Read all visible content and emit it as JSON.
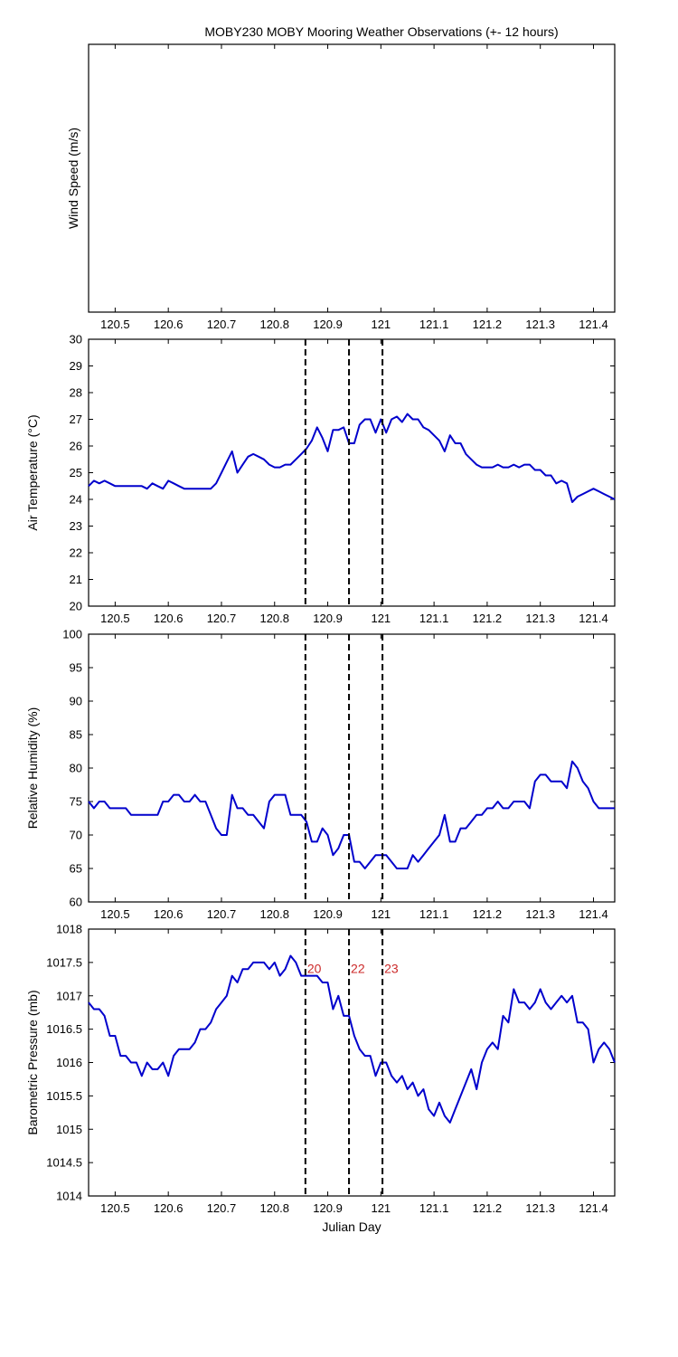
{
  "title": "MOBY230 MOBY Mooring Weather Observations (+- 12 hours)",
  "colors": {
    "line": "#0000cc",
    "marker": "#000000",
    "annotation": "#cc2a2a",
    "axes": "#000000"
  },
  "chart_data": [
    {
      "type": "line",
      "ylabel": "Wind Speed (m/s)",
      "xlabel": "",
      "xlim": [
        120.45,
        121.44
      ],
      "xticks": [
        120.5,
        120.6,
        120.7,
        120.8,
        120.9,
        121,
        121.1,
        121.2,
        121.3,
        121.4
      ],
      "xtick_labels": [
        "120.5",
        "120.6",
        "120.7",
        "120.8",
        "120.9",
        "121",
        "121.1",
        "121.2",
        "121.3",
        "121.4"
      ],
      "yticks": [],
      "ytick_labels": [],
      "series": [],
      "markers": [],
      "annotations": []
    },
    {
      "type": "line",
      "ylabel": "Air Temperature (°C)",
      "xlabel": "",
      "xlim": [
        120.45,
        121.44
      ],
      "ylim": [
        20,
        30
      ],
      "xticks": [
        120.5,
        120.6,
        120.7,
        120.8,
        120.9,
        121,
        121.1,
        121.2,
        121.3,
        121.4
      ],
      "xtick_labels": [
        "120.5",
        "120.6",
        "120.7",
        "120.8",
        "120.9",
        "121",
        "121.1",
        "121.2",
        "121.3",
        "121.4"
      ],
      "yticks": [
        20,
        21,
        22,
        23,
        24,
        25,
        26,
        27,
        28,
        29,
        30
      ],
      "ytick_labels": [
        "20",
        "21",
        "22",
        "23",
        "24",
        "25",
        "26",
        "27",
        "28",
        "29",
        "30"
      ],
      "markers": [
        120.858,
        120.94,
        121.003
      ],
      "annotations": [],
      "series": [
        {
          "x": [
            120.45,
            120.46,
            120.47,
            120.48,
            120.49,
            120.5,
            120.51,
            120.52,
            120.53,
            120.54,
            120.55,
            120.56,
            120.57,
            120.58,
            120.59,
            120.6,
            120.61,
            120.62,
            120.63,
            120.64,
            120.65,
            120.66,
            120.67,
            120.68,
            120.69,
            120.7,
            120.71,
            120.72,
            120.73,
            120.74,
            120.75,
            120.76,
            120.77,
            120.78,
            120.79,
            120.8,
            120.81,
            120.82,
            120.83,
            120.84,
            120.85,
            120.86,
            120.87,
            120.88,
            120.89,
            120.9,
            120.91,
            120.92,
            120.93,
            120.94,
            120.95,
            120.96,
            120.97,
            120.98,
            120.99,
            121.0,
            121.01,
            121.02,
            121.03,
            121.04,
            121.05,
            121.06,
            121.07,
            121.08,
            121.09,
            121.1,
            121.11,
            121.12,
            121.13,
            121.14,
            121.15,
            121.16,
            121.17,
            121.18,
            121.19,
            121.2,
            121.21,
            121.22,
            121.23,
            121.24,
            121.25,
            121.26,
            121.27,
            121.28,
            121.29,
            121.3,
            121.31,
            121.32,
            121.33,
            121.34,
            121.35,
            121.36,
            121.37,
            121.38,
            121.39,
            121.4,
            121.41,
            121.42,
            121.43,
            121.44
          ],
          "y": [
            24.5,
            24.7,
            24.6,
            24.7,
            24.6,
            24.5,
            24.5,
            24.5,
            24.5,
            24.5,
            24.5,
            24.4,
            24.6,
            24.5,
            24.4,
            24.7,
            24.6,
            24.5,
            24.4,
            24.4,
            24.4,
            24.4,
            24.4,
            24.4,
            24.6,
            25.0,
            25.4,
            25.8,
            25.0,
            25.3,
            25.6,
            25.7,
            25.6,
            25.5,
            25.3,
            25.2,
            25.2,
            25.3,
            25.3,
            25.5,
            25.7,
            25.9,
            26.2,
            26.7,
            26.3,
            25.8,
            26.6,
            26.6,
            26.7,
            26.1,
            26.1,
            26.8,
            27.0,
            27.0,
            26.5,
            27.0,
            26.5,
            27.0,
            27.1,
            26.9,
            27.2,
            27.0,
            27.0,
            26.7,
            26.6,
            26.4,
            26.2,
            25.8,
            26.4,
            26.1,
            26.1,
            25.7,
            25.5,
            25.3,
            25.2,
            25.2,
            25.2,
            25.3,
            25.2,
            25.2,
            25.3,
            25.2,
            25.3,
            25.3,
            25.1,
            25.1,
            24.9,
            24.9,
            24.6,
            24.7,
            24.6,
            23.9,
            24.1,
            24.2,
            24.3,
            24.4,
            24.3,
            24.2,
            24.1,
            24.0
          ]
        }
      ]
    },
    {
      "type": "line",
      "ylabel": "Relative Humidity (%)",
      "xlabel": "",
      "xlim": [
        120.45,
        121.44
      ],
      "ylim": [
        60,
        100
      ],
      "xticks": [
        120.5,
        120.6,
        120.7,
        120.8,
        120.9,
        121,
        121.1,
        121.2,
        121.3,
        121.4
      ],
      "xtick_labels": [
        "120.5",
        "120.6",
        "120.7",
        "120.8",
        "120.9",
        "121",
        "121.1",
        "121.2",
        "121.3",
        "121.4"
      ],
      "yticks": [
        60,
        65,
        70,
        75,
        80,
        85,
        90,
        95,
        100
      ],
      "ytick_labels": [
        "60",
        "65",
        "70",
        "75",
        "80",
        "85",
        "90",
        "95",
        "100"
      ],
      "markers": [
        120.858,
        120.94,
        121.003
      ],
      "annotations": [],
      "series": [
        {
          "x": [
            120.45,
            120.46,
            120.47,
            120.48,
            120.49,
            120.5,
            120.51,
            120.52,
            120.53,
            120.54,
            120.55,
            120.56,
            120.57,
            120.58,
            120.59,
            120.6,
            120.61,
            120.62,
            120.63,
            120.64,
            120.65,
            120.66,
            120.67,
            120.68,
            120.69,
            120.7,
            120.71,
            120.72,
            120.73,
            120.74,
            120.75,
            120.76,
            120.77,
            120.78,
            120.79,
            120.8,
            120.81,
            120.82,
            120.83,
            120.84,
            120.85,
            120.86,
            120.87,
            120.88,
            120.89,
            120.9,
            120.91,
            120.92,
            120.93,
            120.94,
            120.95,
            120.96,
            120.97,
            120.98,
            120.99,
            121.0,
            121.01,
            121.02,
            121.03,
            121.04,
            121.05,
            121.06,
            121.07,
            121.08,
            121.09,
            121.1,
            121.11,
            121.12,
            121.13,
            121.14,
            121.15,
            121.16,
            121.17,
            121.18,
            121.19,
            121.2,
            121.21,
            121.22,
            121.23,
            121.24,
            121.25,
            121.26,
            121.27,
            121.28,
            121.29,
            121.3,
            121.31,
            121.32,
            121.33,
            121.34,
            121.35,
            121.36,
            121.37,
            121.38,
            121.39,
            121.4,
            121.41,
            121.42,
            121.43,
            121.44
          ],
          "y": [
            75,
            74,
            75,
            75,
            74,
            74,
            74,
            74,
            73,
            73,
            73,
            73,
            73,
            73,
            75,
            75,
            76,
            76,
            75,
            75,
            76,
            75,
            75,
            73,
            71,
            70,
            70,
            76,
            74,
            74,
            73,
            73,
            72,
            71,
            75,
            76,
            76,
            76,
            73,
            73,
            73,
            72,
            69,
            69,
            71,
            70,
            67,
            68,
            70,
            70,
            66,
            66,
            65,
            66,
            67,
            67,
            67,
            66,
            65,
            65,
            65,
            67,
            66,
            67,
            68,
            69,
            70,
            73,
            69,
            69,
            71,
            71,
            72,
            73,
            73,
            74,
            74,
            75,
            74,
            74,
            75,
            75,
            75,
            74,
            78,
            79,
            79,
            78,
            78,
            78,
            77,
            81,
            80,
            78,
            77,
            75,
            74,
            74,
            74,
            74
          ]
        }
      ]
    },
    {
      "type": "line",
      "ylabel": "Barometric Pressure (mb)",
      "xlabel": "Julian Day",
      "xlim": [
        120.45,
        121.44
      ],
      "ylim": [
        1014,
        1018
      ],
      "xticks": [
        120.5,
        120.6,
        120.7,
        120.8,
        120.9,
        121,
        121.1,
        121.2,
        121.3,
        121.4
      ],
      "xtick_labels": [
        "120.5",
        "120.6",
        "120.7",
        "120.8",
        "120.9",
        "121",
        "121.1",
        "121.2",
        "121.3",
        "121.4"
      ],
      "yticks": [
        1014,
        1014.5,
        1015,
        1015.5,
        1016,
        1016.5,
        1017,
        1017.5,
        1018
      ],
      "ytick_labels": [
        "1014",
        "1014.5",
        "1015",
        "1015.5",
        "1016",
        "1016.5",
        "1017",
        "1017.5",
        "1018"
      ],
      "markers": [
        120.858,
        120.94,
        121.003
      ],
      "annotations": [
        {
          "text": "20",
          "x": 120.858,
          "y": 1017.4
        },
        {
          "text": "22",
          "x": 120.94,
          "y": 1017.4
        },
        {
          "text": "23",
          "x": 121.003,
          "y": 1017.4
        }
      ],
      "series": [
        {
          "x": [
            120.45,
            120.46,
            120.47,
            120.48,
            120.49,
            120.5,
            120.51,
            120.52,
            120.53,
            120.54,
            120.55,
            120.56,
            120.57,
            120.58,
            120.59,
            120.6,
            120.61,
            120.62,
            120.63,
            120.64,
            120.65,
            120.66,
            120.67,
            120.68,
            120.69,
            120.7,
            120.71,
            120.72,
            120.73,
            120.74,
            120.75,
            120.76,
            120.77,
            120.78,
            120.79,
            120.8,
            120.81,
            120.82,
            120.83,
            120.84,
            120.85,
            120.86,
            120.87,
            120.88,
            120.89,
            120.9,
            120.91,
            120.92,
            120.93,
            120.94,
            120.95,
            120.96,
            120.97,
            120.98,
            120.99,
            121.0,
            121.01,
            121.02,
            121.03,
            121.04,
            121.05,
            121.06,
            121.07,
            121.08,
            121.09,
            121.1,
            121.11,
            121.12,
            121.13,
            121.14,
            121.15,
            121.16,
            121.17,
            121.18,
            121.19,
            121.2,
            121.21,
            121.22,
            121.23,
            121.24,
            121.25,
            121.26,
            121.27,
            121.28,
            121.29,
            121.3,
            121.31,
            121.32,
            121.33,
            121.34,
            121.35,
            121.36,
            121.37,
            121.38,
            121.39,
            121.4,
            121.41,
            121.42,
            121.43,
            121.44
          ],
          "y": [
            1016.9,
            1016.8,
            1016.8,
            1016.7,
            1016.4,
            1016.4,
            1016.1,
            1016.1,
            1016.0,
            1016.0,
            1015.8,
            1016.0,
            1015.9,
            1015.9,
            1016.0,
            1015.8,
            1016.1,
            1016.2,
            1016.2,
            1016.2,
            1016.3,
            1016.5,
            1016.5,
            1016.6,
            1016.8,
            1016.9,
            1017.0,
            1017.3,
            1017.2,
            1017.4,
            1017.4,
            1017.5,
            1017.5,
            1017.5,
            1017.4,
            1017.5,
            1017.3,
            1017.4,
            1017.6,
            1017.5,
            1017.3,
            1017.3,
            1017.3,
            1017.3,
            1017.2,
            1017.2,
            1016.8,
            1017.0,
            1016.7,
            1016.7,
            1016.4,
            1016.2,
            1016.1,
            1016.1,
            1015.8,
            1016.0,
            1016.0,
            1015.8,
            1015.7,
            1015.8,
            1015.6,
            1015.7,
            1015.5,
            1015.6,
            1015.3,
            1015.2,
            1015.4,
            1015.2,
            1015.1,
            1015.3,
            1015.5,
            1015.7,
            1015.9,
            1015.6,
            1016.0,
            1016.2,
            1016.3,
            1016.2,
            1016.7,
            1016.6,
            1017.1,
            1016.9,
            1016.9,
            1016.8,
            1016.9,
            1017.1,
            1016.9,
            1016.8,
            1016.9,
            1017.0,
            1016.9,
            1017.0,
            1016.6,
            1016.6,
            1016.5,
            1016.0,
            1016.2,
            1016.3,
            1016.2,
            1016.0
          ]
        }
      ]
    }
  ]
}
